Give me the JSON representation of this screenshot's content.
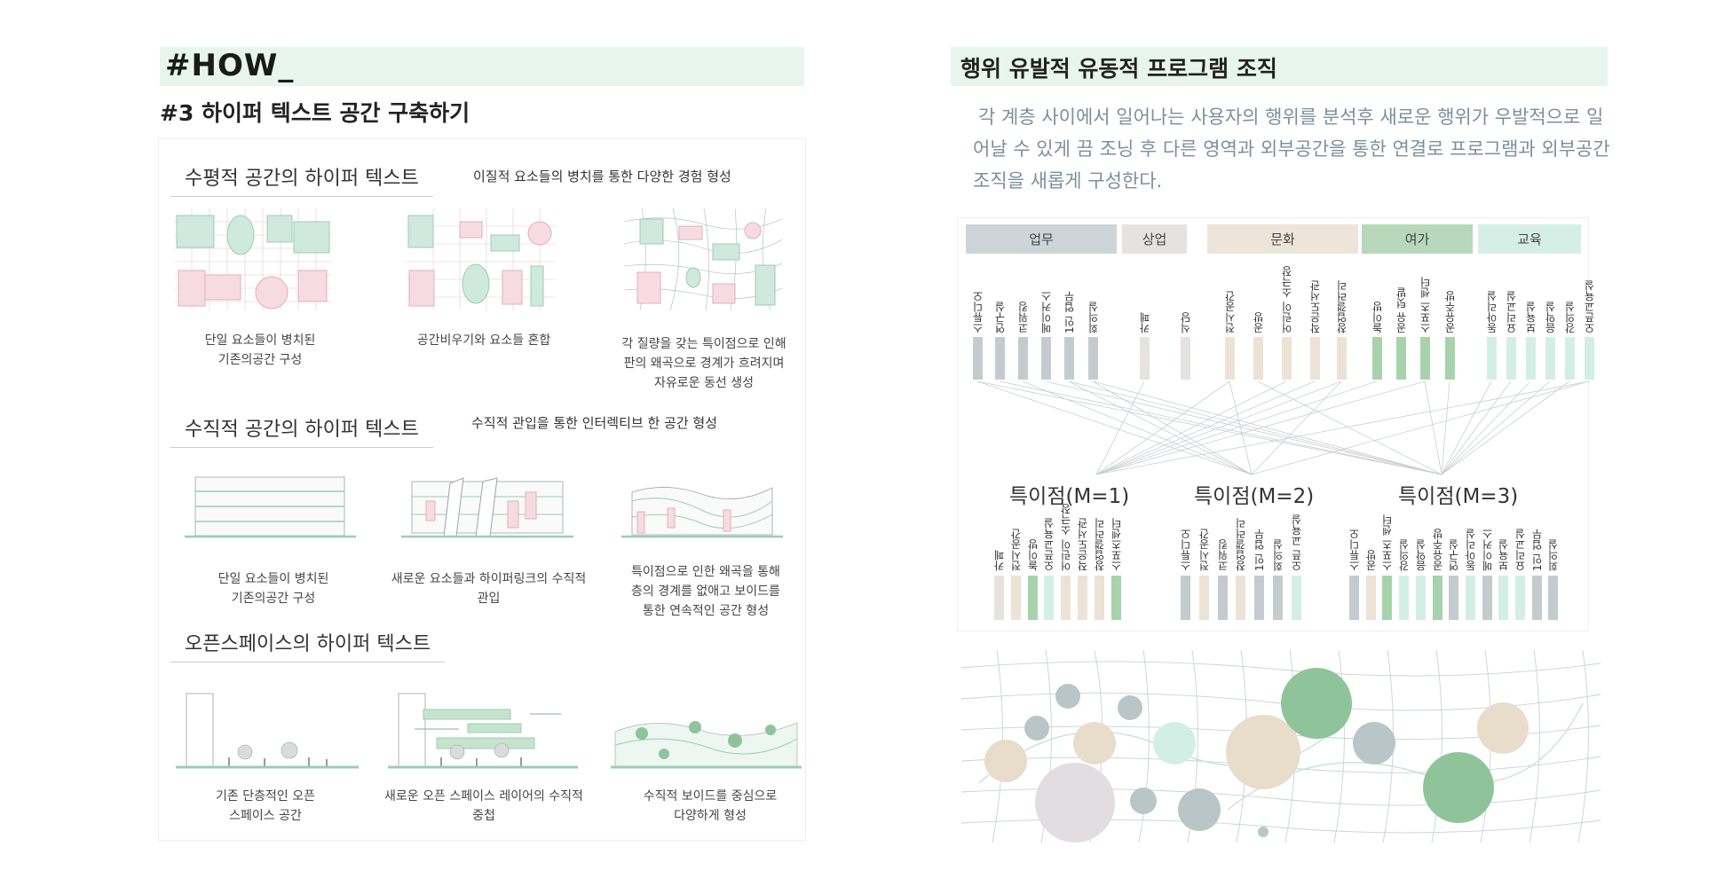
{
  "left": {
    "heading": "#HOW_",
    "subheading": "#3 하이퍼 텍스트 공간 구축하기",
    "sections": [
      {
        "title": "수평적 공간의 하이퍼 텍스트",
        "note": "이질적 요소들의 병치를 통한 다양한 경험 형성",
        "captions": [
          "단일 요소들이 병치된\n기존의공간 구성",
          "공간비우기와 요소들 혼합",
          "각 질량을 갖는 특이점으로 인해\n판의 왜곡으로 경계가 흐려지며\n자유로운 동선 생성"
        ]
      },
      {
        "title": "수직적 공간의 하이퍼 텍스트",
        "note": "수직적 관입을 통한 인터렉티브 한 공간 형성",
        "captions": [
          "단일 요소들이 병치된\n기존의공간 구성",
          "새로운 요소들과 하이퍼링크의 수직적\n관입",
          "특이점으로 인한 왜곡을 통해\n층의 경계를 없애고 보이드를\n통한 연속적인 공간 형성"
        ]
      },
      {
        "title": "오픈스페이스의 하이퍼 텍스트",
        "note": "",
        "captions": [
          "기존 단층적인 오픈\n스페이스 공간",
          "새로운 오픈 스페이스 레이어의 수직적\n중첩",
          "수직적 보이드를 중심으로\n다양하게 형성"
        ]
      }
    ]
  },
  "right": {
    "title": "행위 유발적 유동적 프로그램 조직",
    "description": "각 계층 사이에서 일어나는 사용자의 행위를 분석후 새로운 행위가 우발적으로 일어날 수 있게 끔 조닝 후 다른 영역과 외부공간을 통한 연결로 프로그램과 외부공간 조직을 새롭게 구성한다.",
    "categories": [
      {
        "name": "업무",
        "color": "#cdd5d8",
        "items": [
          "스튜디오",
          "연구실",
          "코워킹",
          "메이커스",
          "1인 업무",
          "회의실"
        ]
      },
      {
        "name": "상업",
        "color": "#e6e2e2",
        "items": [
          "카페",
          "식당"
        ]
      },
      {
        "name": "문화",
        "color": "#eee5da",
        "items": [
          "전시공간",
          "공방",
          "어린이 소극장",
          "작은도서관",
          "창업갤러리"
        ]
      },
      {
        "name": "여가",
        "color": "#b9d8bb",
        "items": [
          "놀이방",
          "공유 텃밭",
          "스포츠 센터",
          "공유주방"
        ]
      },
      {
        "name": "교육",
        "color": "#d6efe6",
        "items": [
          "동아리실",
          "요리교실",
          "보육실",
          "음악실",
          "강의실",
          "오픈교육실"
        ]
      }
    ],
    "groups": [
      {
        "label": "특이점(M=1)",
        "items": [
          "카페",
          "전시공간",
          "놀이방",
          "오픈교육실",
          "어린이 소극장",
          "작은도서관",
          "창업갤러리",
          "스포츠센터"
        ]
      },
      {
        "label": "특이점(M=2)",
        "items": [
          "스튜디오",
          "전시공간",
          "코워킹",
          "창업갤러리",
          "1인 업무",
          "회의실",
          "오픈 교육실"
        ]
      },
      {
        "label": "특이점(M=3)",
        "items": [
          "스튜디오",
          "공방",
          "스포츠 센터",
          "강의실",
          "음악실",
          "공유주방",
          "연구실",
          "동아리실",
          "메이커스",
          "보육실",
          "요리교실",
          "1인 업무",
          "회의실"
        ]
      }
    ],
    "colors": {
      "work": "#c3cbcf",
      "commerce": "#e6e2e2",
      "culture": "#ece2d6",
      "leisure": "#a8d2ac",
      "education": "#d3efe5",
      "accent": "#e8f5ef"
    }
  }
}
